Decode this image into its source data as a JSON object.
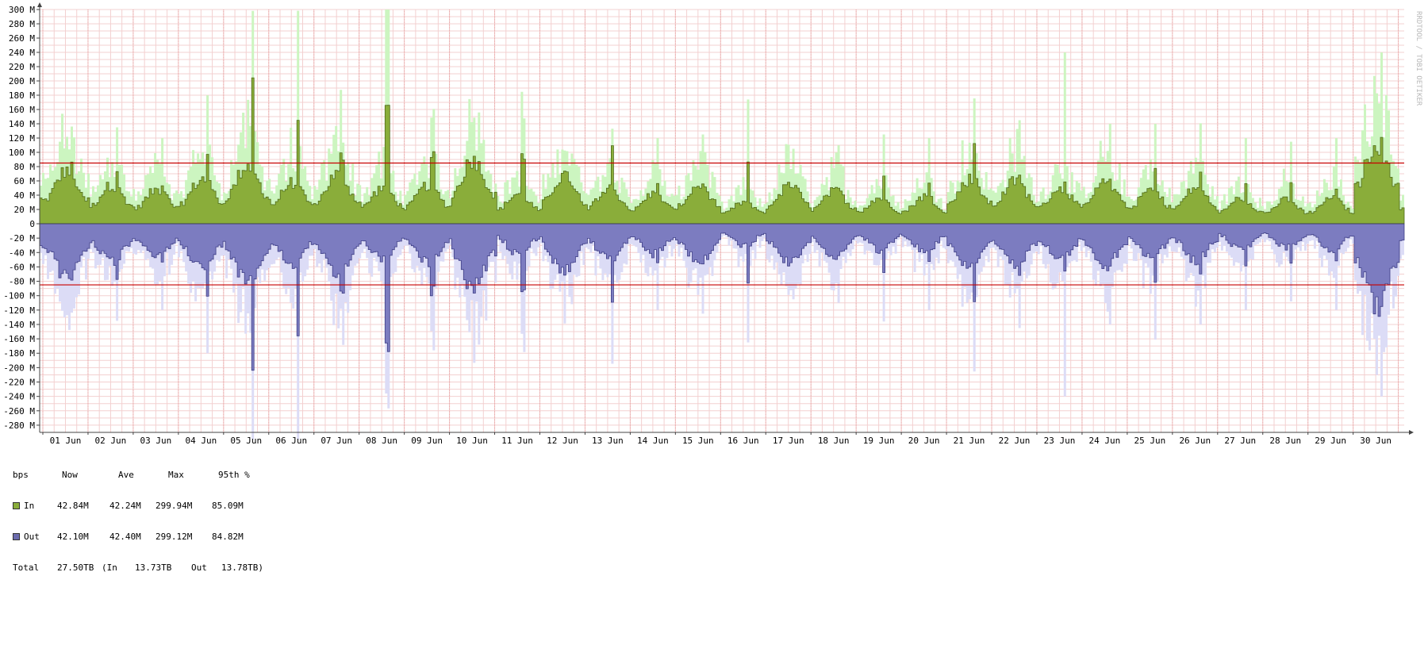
{
  "chart_data": {
    "type": "area",
    "y_unit": "bps",
    "ylim": [
      -290000000,
      310000000
    ],
    "y_ticks": [
      "300 M",
      "280 M",
      "260 M",
      "240 M",
      "220 M",
      "200 M",
      "180 M",
      "160 M",
      "140 M",
      "120 M",
      "100 M",
      "80 M",
      "60 M",
      "40 M",
      "20 M",
      "0",
      "-20 M",
      "-40 M",
      "-60 M",
      "-80 M",
      "-100 M",
      "-120 M",
      "-140 M",
      "-160 M",
      "-180 M",
      "-200 M",
      "-220 M",
      "-240 M",
      "-260 M",
      "-280 M"
    ],
    "x_tick_labels": [
      "01 Jun",
      "02 Jun",
      "03 Jun",
      "04 Jun",
      "05 Jun",
      "06 Jun",
      "07 Jun",
      "08 Jun",
      "09 Jun",
      "10 Jun",
      "11 Jun",
      "12 Jun",
      "13 Jun",
      "14 Jun",
      "15 Jun",
      "16 Jun",
      "17 Jun",
      "18 Jun",
      "19 Jun",
      "20 Jun",
      "21 Jun",
      "22 Jun",
      "23 Jun",
      "24 Jun",
      "25 Jun",
      "26 Jun",
      "27 Jun",
      "28 Jun",
      "29 Jun",
      "30 Jun"
    ],
    "grid": true,
    "percentile_lines": [
      85000000,
      -85000000
    ],
    "daily_avg_M": {
      "in": [
        62,
        45,
        40,
        52,
        68,
        48,
        58,
        42,
        45,
        75,
        35,
        55,
        42,
        35,
        45,
        25,
        45,
        38,
        30,
        32,
        52,
        50,
        42,
        48,
        40,
        42,
        30,
        28,
        30,
        95,
        40
      ],
      "out": [
        62,
        45,
        40,
        52,
        68,
        48,
        58,
        42,
        45,
        75,
        35,
        55,
        42,
        35,
        45,
        25,
        45,
        38,
        30,
        32,
        52,
        50,
        42,
        48,
        40,
        42,
        30,
        28,
        30,
        95,
        40
      ]
    },
    "daily_peak_M": {
      "in": [
        88,
        80,
        60,
        112,
        210,
        162,
        102,
        180,
        102,
        78,
        100,
        60,
        112,
        58,
        62,
        88,
        52,
        52,
        68,
        60,
        115,
        72,
        68,
        45,
        82,
        78,
        62,
        62,
        52,
        112,
        95
      ],
      "out": [
        88,
        80,
        60,
        112,
        210,
        162,
        102,
        180,
        102,
        78,
        100,
        60,
        112,
        58,
        62,
        88,
        52,
        52,
        68,
        60,
        115,
        72,
        68,
        45,
        82,
        78,
        62,
        62,
        52,
        112,
        95
      ]
    },
    "daily_max_M": {
      "in": [
        105,
        135,
        120,
        180,
        300,
        240,
        175,
        240,
        160,
        185,
        230,
        125,
        155,
        120,
        125,
        165,
        105,
        110,
        125,
        120,
        165,
        145,
        240,
        140,
        140,
        140,
        120,
        108,
        120,
        240,
        130
      ],
      "out": [
        105,
        135,
        120,
        180,
        300,
        240,
        175,
        240,
        160,
        185,
        230,
        125,
        155,
        120,
        125,
        165,
        105,
        110,
        125,
        120,
        165,
        145,
        240,
        140,
        140,
        140,
        120,
        108,
        120,
        240,
        130
      ]
    },
    "series": [
      {
        "name": "In",
        "color": "#8aad3a",
        "max_color": "#ccf5c0"
      },
      {
        "name": "Out",
        "color": "#7c7cc0",
        "max_color": "#dcdcf6"
      }
    ],
    "percentile_color": "#c80000",
    "watermark": "RRDTOOL / TOBI OETIKER"
  },
  "legend": {
    "headers": [
      "bps",
      "Now",
      "Ave",
      "Max",
      "95th %"
    ],
    "in": {
      "label": "In",
      "now": "42.84M",
      "ave": "42.24M",
      "max": "299.94M",
      "p95": "85.09M"
    },
    "out": {
      "label": "Out",
      "now": "42.10M",
      "ave": "42.40M",
      "max": "299.12M",
      "p95": "84.82M"
    },
    "total": {
      "label": "Total",
      "value": "27.50TB",
      "in_label": "(In",
      "in_value": "13.73TB",
      "out_label": "Out",
      "out_value": "13.78TB)"
    }
  }
}
